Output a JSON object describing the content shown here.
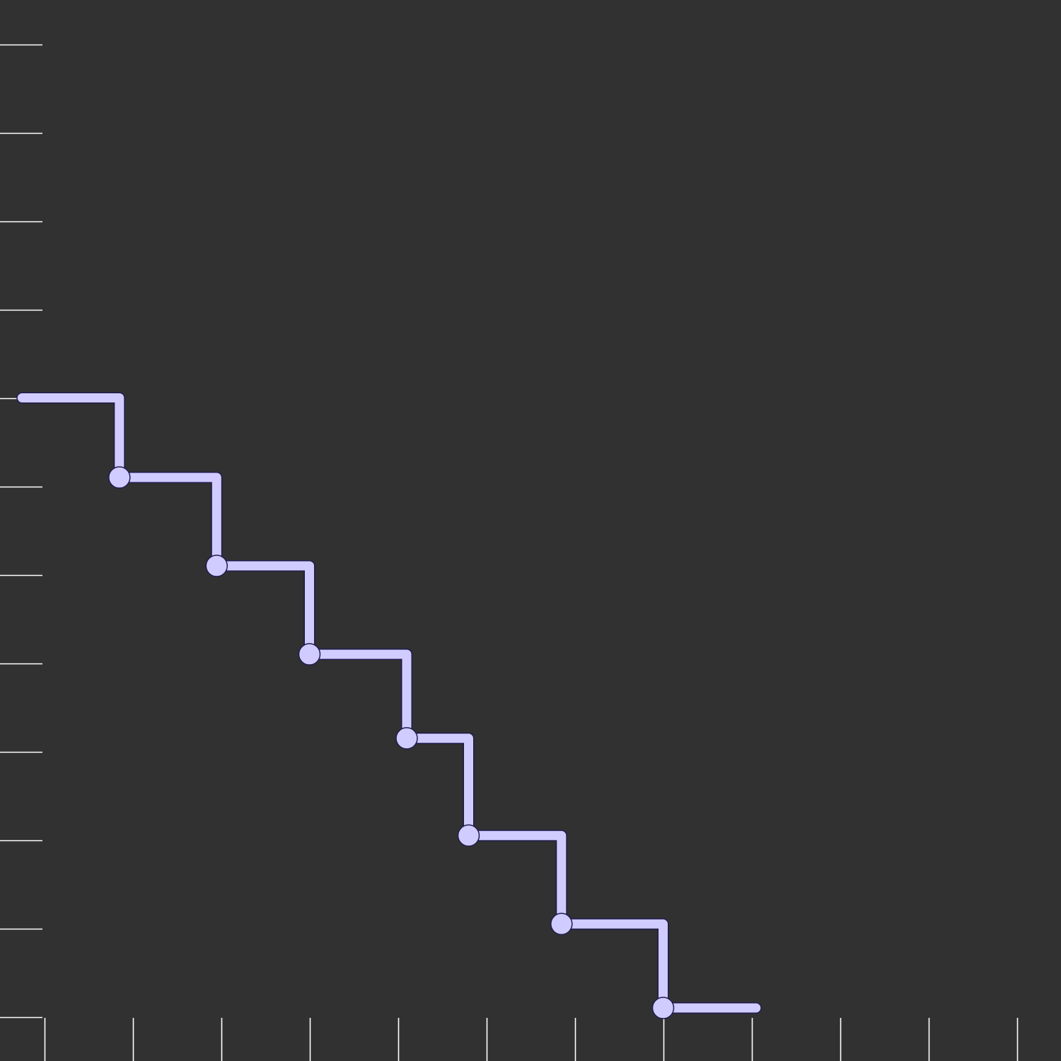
{
  "chart_data": {
    "type": "line",
    "line_style": "step",
    "title": "",
    "xlabel": "",
    "ylabel": "",
    "grid": false,
    "legend": "none",
    "xlim": [
      0,
      12
    ],
    "ylim": [
      -0.5,
      11.5
    ],
    "x_ticks": [
      0.5,
      1.5,
      2.5,
      3.5,
      4.5,
      5.5,
      6.5,
      7.5,
      8.5,
      9.5,
      10.5,
      11.5
    ],
    "y_ticks": [
      0,
      1,
      2,
      3,
      4,
      5,
      6,
      7,
      8,
      9,
      10,
      11
    ],
    "series": [
      {
        "color": "#d0ccff",
        "points": [
          {
            "x": 0.25,
            "y": 7.0,
            "marker": false
          },
          {
            "x": 1.35,
            "y": 6.1,
            "marker": true
          },
          {
            "x": 2.45,
            "y": 5.1,
            "marker": true
          },
          {
            "x": 3.5,
            "y": 4.1,
            "marker": true
          },
          {
            "x": 4.6,
            "y": 3.15,
            "marker": true
          },
          {
            "x": 5.3,
            "y": 2.05,
            "marker": true
          },
          {
            "x": 6.35,
            "y": 1.05,
            "marker": true
          },
          {
            "x": 7.5,
            "y": 0.1,
            "marker": true
          },
          {
            "x": 8.55,
            "y": 0.1,
            "marker": false
          }
        ]
      }
    ],
    "colors": {
      "background": "#313131",
      "tick": "#ffffff",
      "line": "#d0ccff",
      "edge": "#1f1c4d"
    }
  }
}
